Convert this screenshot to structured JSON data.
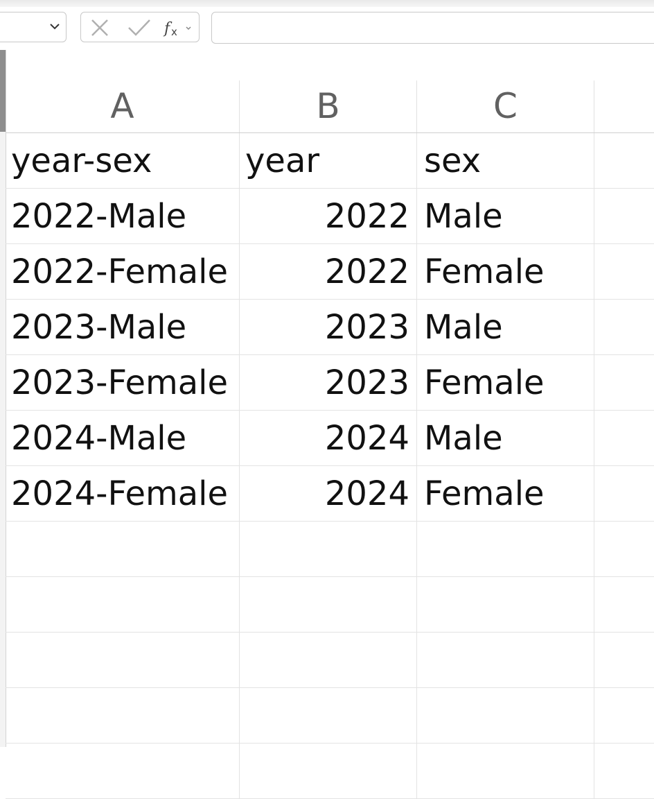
{
  "formula_bar": {
    "name_box_value": "",
    "formula_value": "",
    "icons": [
      "cancel-icon",
      "enter-icon",
      "function-icon"
    ]
  },
  "columns": [
    "A",
    "B",
    "C"
  ],
  "rows": [
    {
      "a": "year-sex",
      "b": "year",
      "c": "sex",
      "b_numeric": false
    },
    {
      "a": "2022-Male",
      "b": "2022",
      "c": "Male",
      "b_numeric": true
    },
    {
      "a": "2022-Female",
      "b": "2022",
      "c": "Female",
      "b_numeric": true
    },
    {
      "a": "2023-Male",
      "b": "2023",
      "c": "Male",
      "b_numeric": true
    },
    {
      "a": "2023-Female",
      "b": "2023",
      "c": "Female",
      "b_numeric": true
    },
    {
      "a": "2024-Male",
      "b": "2024",
      "c": "Male",
      "b_numeric": true
    },
    {
      "a": "2024-Female",
      "b": "2024",
      "c": "Female",
      "b_numeric": true
    },
    {
      "a": "",
      "b": "",
      "c": "",
      "b_numeric": false
    },
    {
      "a": "",
      "b": "",
      "c": "",
      "b_numeric": false
    },
    {
      "a": "",
      "b": "",
      "c": "",
      "b_numeric": false
    },
    {
      "a": "",
      "b": "",
      "c": "",
      "b_numeric": false
    },
    {
      "a": "",
      "b": "",
      "c": "",
      "b_numeric": false
    }
  ]
}
